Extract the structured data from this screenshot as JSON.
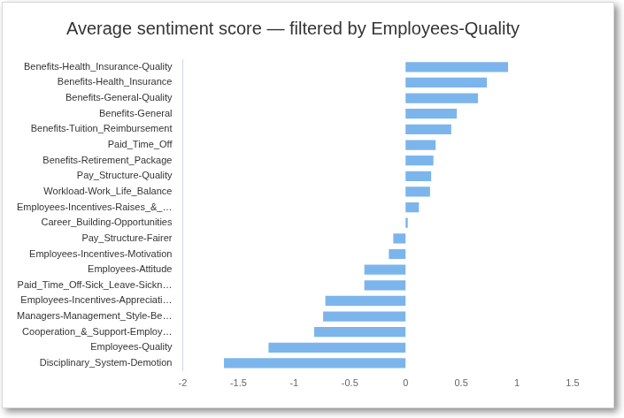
{
  "chart_data": {
    "type": "bar",
    "orientation": "horizontal",
    "title": "Average sentiment score — filtered by Employees-Quality",
    "categories": [
      "Benefits-Health_Insurance-Quality",
      "Benefits-Health_Insurance",
      "Benefits-General-Quality",
      "Benefits-General",
      "Benefits-Tuition_Reimbursement",
      "Paid_Time_Off",
      "Benefits-Retirement_Package",
      "Pay_Structure-Quality",
      "Workload-Work_Life_Balance",
      "Employees-Incentives-Raises_&_…",
      "Career_Building-Opportunities",
      "Pay_Structure-Fairer",
      "Employees-Incentives-Motivation",
      "Employees-Attitude",
      "Paid_Time_Off-Sick_Leave-Sickn…",
      "Employees-Incentives-Appreciati…",
      "Managers-Management_Style-Be…",
      "Cooperation_&_Support-Employ…",
      "Employees-Quality",
      "Disciplinary_System-Demotion"
    ],
    "values": [
      0.92,
      0.73,
      0.65,
      0.46,
      0.41,
      0.27,
      0.25,
      0.23,
      0.22,
      0.12,
      0.02,
      -0.11,
      -0.15,
      -0.37,
      -0.37,
      -0.72,
      -0.74,
      -0.82,
      -1.23,
      -1.63
    ],
    "color": "#7cb5ec",
    "xlim": [
      -2,
      1.5
    ],
    "xticks": [
      -2,
      -1.5,
      -1,
      -0.5,
      0,
      0.5,
      1,
      1.5
    ],
    "grid": false
  }
}
